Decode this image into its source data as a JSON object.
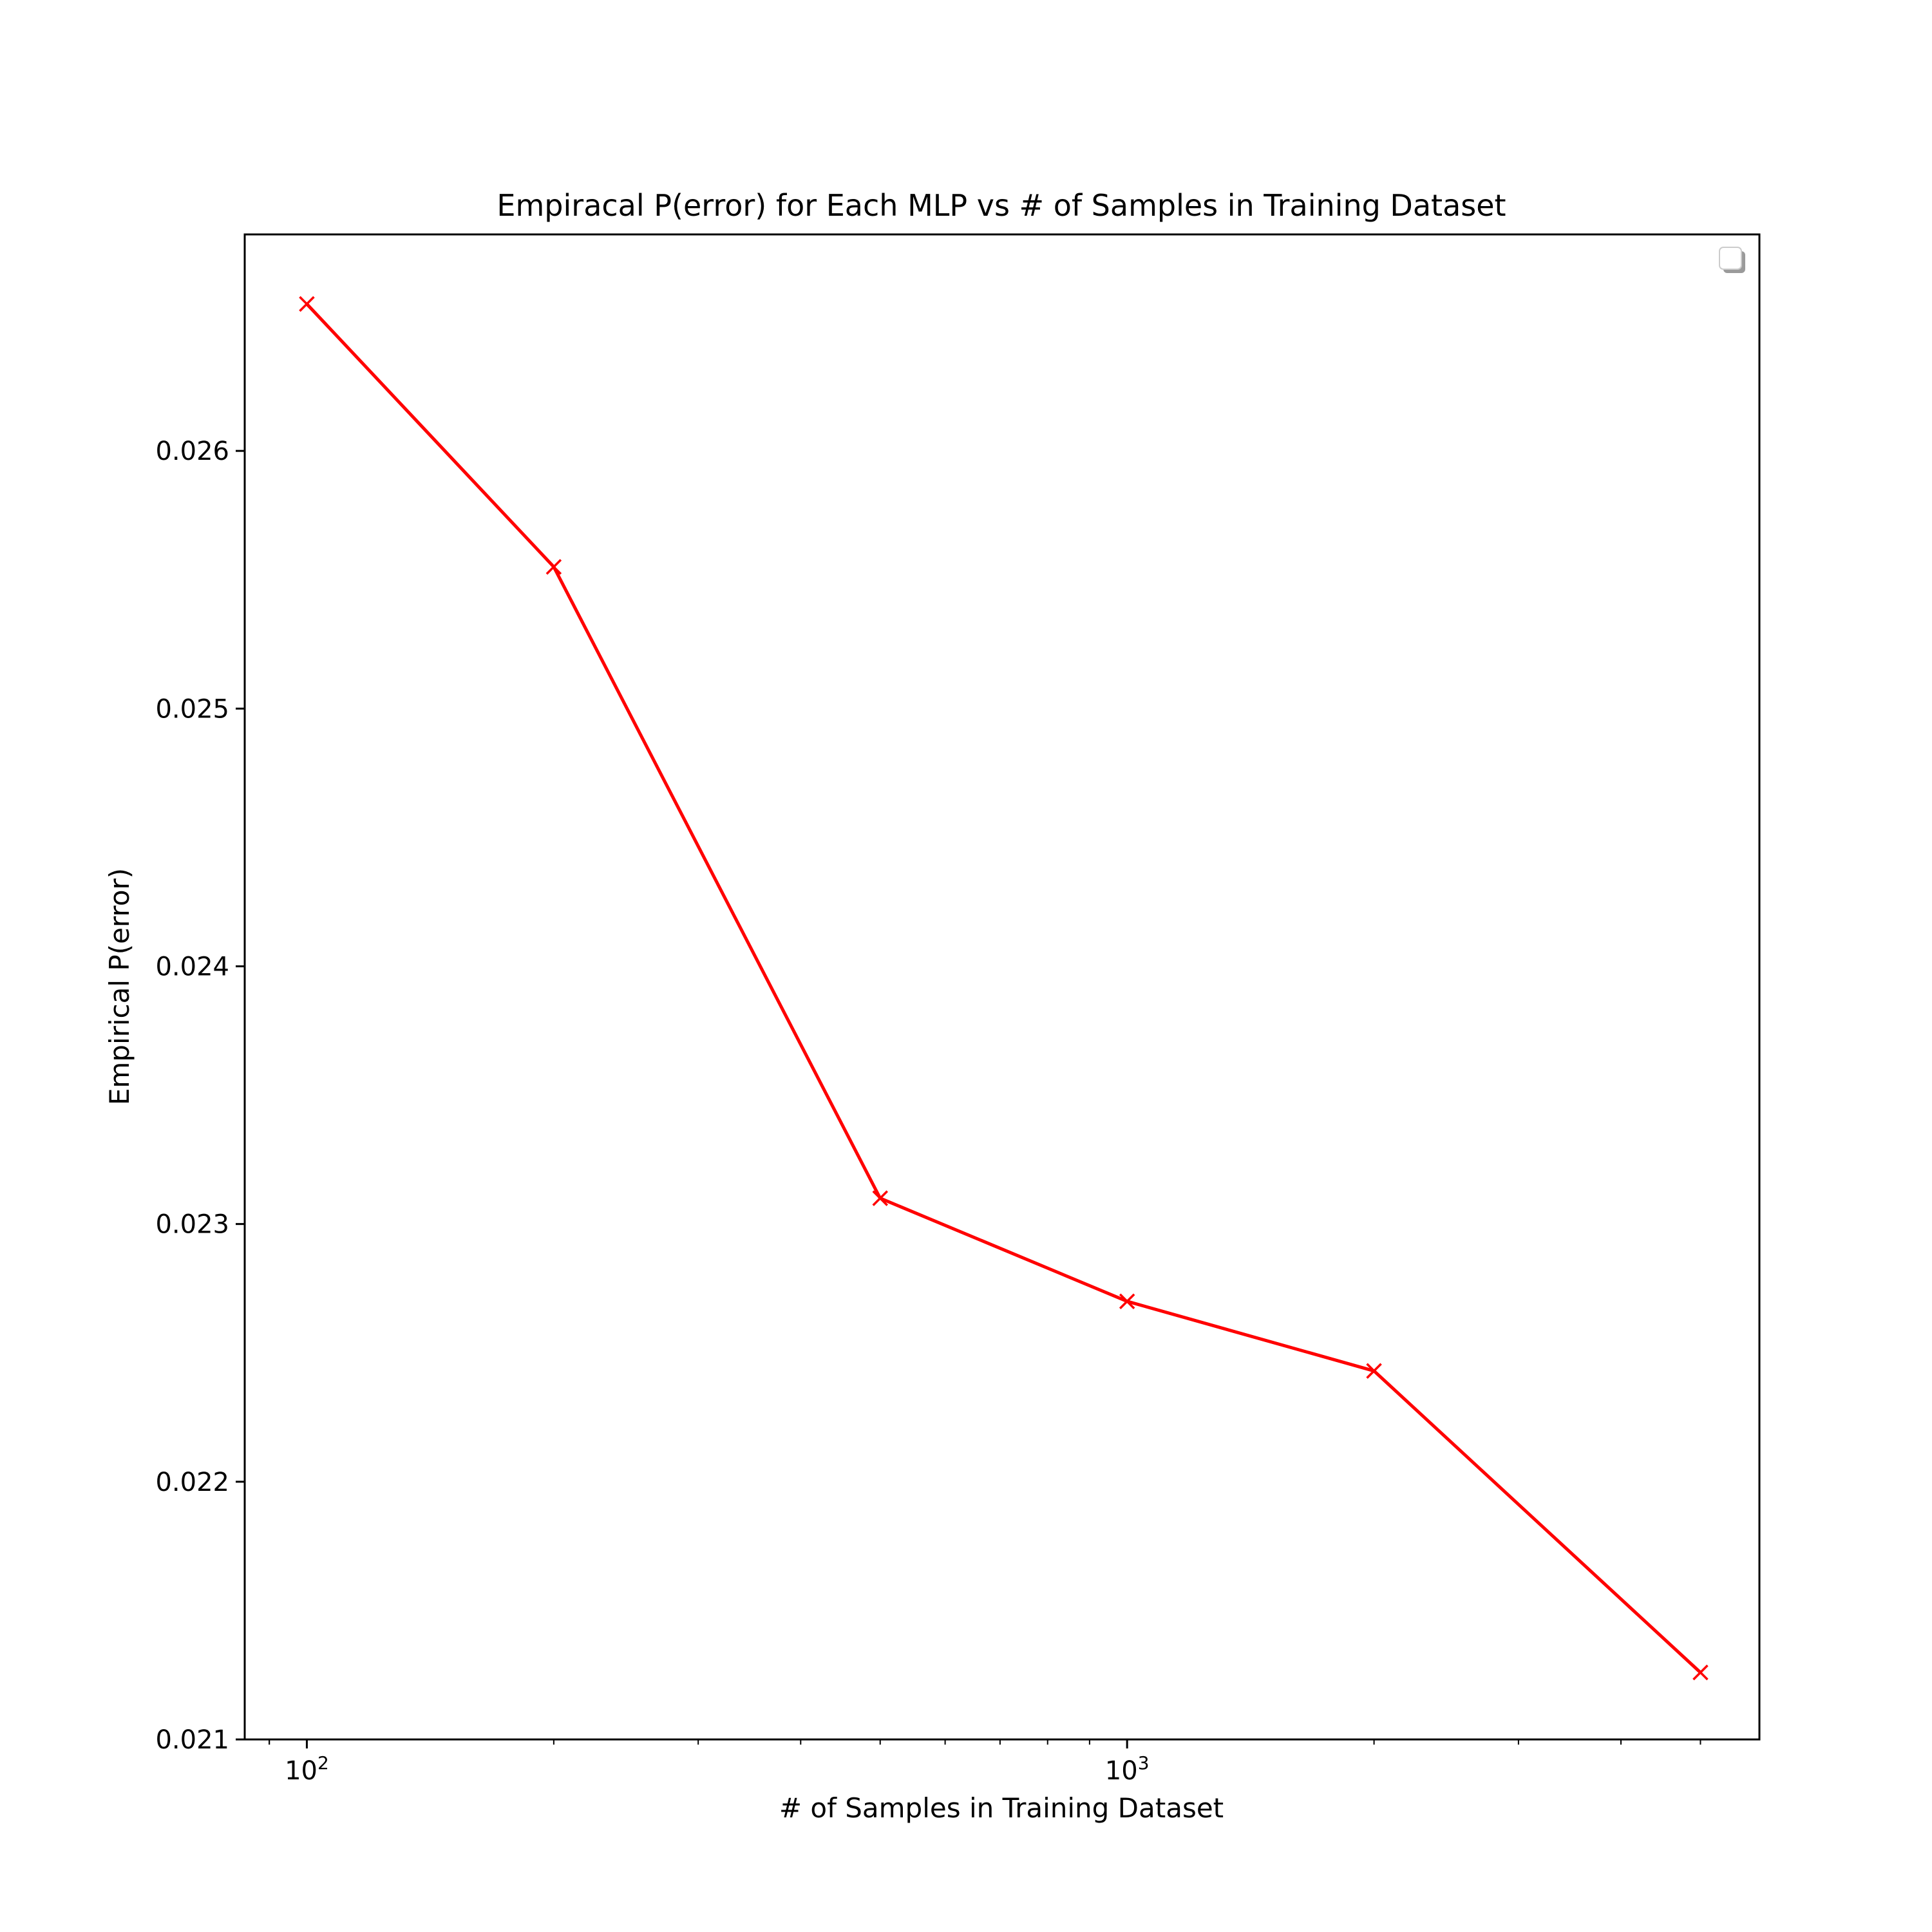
{
  "chart_data": {
    "type": "line",
    "title": "Empiracal P(error) for Each MLP vs # of Samples in Training Dataset",
    "xlabel": "# of Samples in Training Dataset",
    "ylabel": "Empirical P(error)",
    "x_scale": "log",
    "xlim": [
      84,
      5900
    ],
    "ylim": [
      0.021,
      0.02684
    ],
    "x_ticks": [
      {
        "value": 100,
        "base": "10",
        "exponent": "2"
      },
      {
        "value": 1000,
        "base": "10",
        "exponent": "3"
      }
    ],
    "y_ticks": [
      {
        "value": 0.021,
        "label": "0.021"
      },
      {
        "value": 0.022,
        "label": "0.022"
      },
      {
        "value": 0.023,
        "label": "0.023"
      },
      {
        "value": 0.024,
        "label": "0.024"
      },
      {
        "value": 0.025,
        "label": "0.025"
      },
      {
        "value": 0.026,
        "label": "0.026"
      }
    ],
    "grid": false,
    "legend": {
      "placement": "upper-right",
      "entries": []
    },
    "series": [
      {
        "color": "#ff0000",
        "marker": "x",
        "points": [
          {
            "x": 100,
            "y": 0.02657
          },
          {
            "x": 200,
            "y": 0.02555
          },
          {
            "x": 500,
            "y": 0.0231
          },
          {
            "x": 1000,
            "y": 0.0227
          },
          {
            "x": 2000,
            "y": 0.02243
          },
          {
            "x": 5000,
            "y": 0.02126
          }
        ]
      }
    ]
  }
}
